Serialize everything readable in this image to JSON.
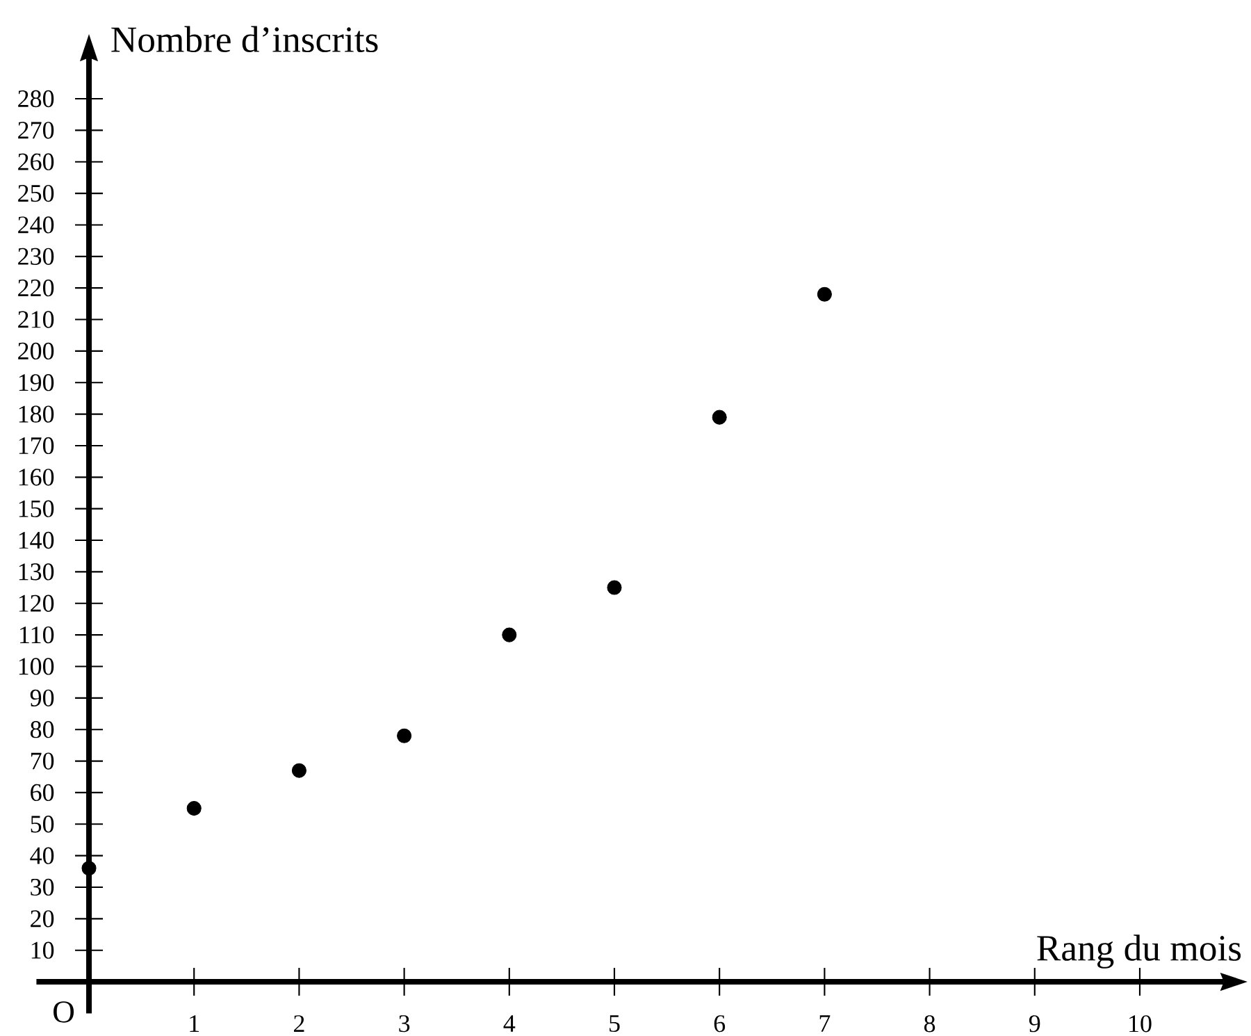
{
  "chart_data": {
    "type": "scatter",
    "xlabel": "Rang du mois",
    "ylabel": "Nombre d’inscrits",
    "x": [
      0,
      1,
      2,
      3,
      4,
      5,
      6,
      7
    ],
    "series": [
      {
        "color": "#000000",
        "values": [
          36,
          55,
          67,
          78,
          110,
          125,
          179,
          218
        ]
      }
    ],
    "xlim": [
      -0.5,
      10.8
    ],
    "ylim": [
      -10,
      293
    ],
    "xticks": [
      1,
      2,
      3,
      4,
      5,
      6,
      7,
      8,
      9,
      10
    ],
    "yticks": [
      10,
      20,
      30,
      40,
      50,
      60,
      70,
      80,
      90,
      100,
      110,
      120,
      130,
      140,
      150,
      160,
      170,
      180,
      190,
      200,
      210,
      220,
      230,
      240,
      250,
      260,
      270,
      280
    ],
    "marker": "circle",
    "annotations": [
      "O"
    ]
  }
}
